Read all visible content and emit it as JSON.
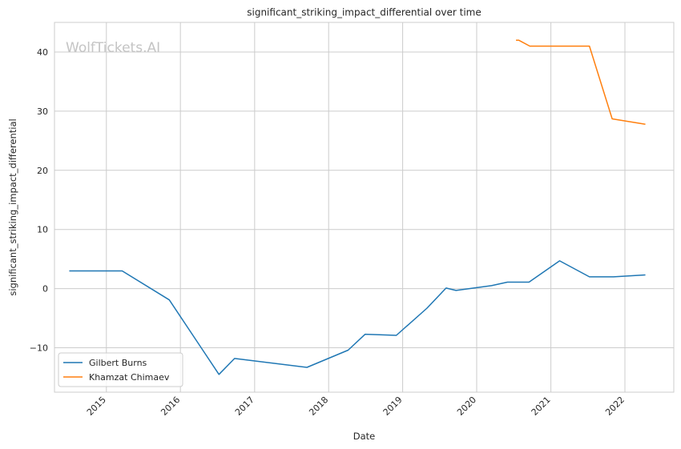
{
  "chart_data": {
    "type": "line",
    "title": "significant_striking_impact_differential over time",
    "xlabel": "Date",
    "ylabel": "significant_striking_impact_differential",
    "watermark": "WolfTickets.AI",
    "grid": true,
    "legend_position": "lower-left",
    "xlim": [
      "2014-04-20",
      "2022-08-30"
    ],
    "ylim": [
      -17.5,
      45
    ],
    "x_ticks": [
      "2015",
      "2016",
      "2017",
      "2018",
      "2019",
      "2020",
      "2021",
      "2022"
    ],
    "y_ticks": [
      -10,
      0,
      10,
      20,
      30,
      40
    ],
    "colors": {
      "grid": "#cccccc",
      "axes_edge": "#cccccc"
    },
    "series": [
      {
        "name": "Gilbert Burns",
        "color": "#1f77b4",
        "points": [
          {
            "x": "2014-07-05",
            "y": 3.0
          },
          {
            "x": "2015-03-20",
            "y": 3.0
          },
          {
            "x": "2015-11-07",
            "y": -1.9
          },
          {
            "x": "2016-07-09",
            "y": -14.5
          },
          {
            "x": "2016-09-24",
            "y": -11.8
          },
          {
            "x": "2017-09-16",
            "y": -13.3
          },
          {
            "x": "2018-04-07",
            "y": -10.4
          },
          {
            "x": "2018-06-30",
            "y": -7.7
          },
          {
            "x": "2018-12-01",
            "y": -7.9
          },
          {
            "x": "2019-05-01",
            "y": -3.3
          },
          {
            "x": "2019-08-03",
            "y": 0.1
          },
          {
            "x": "2019-09-21",
            "y": -0.3
          },
          {
            "x": "2020-03-14",
            "y": 0.5
          },
          {
            "x": "2020-06-01",
            "y": 1.1
          },
          {
            "x": "2020-09-15",
            "y": 1.1
          },
          {
            "x": "2021-02-13",
            "y": 4.7
          },
          {
            "x": "2021-07-10",
            "y": 2.0
          },
          {
            "x": "2021-11-06",
            "y": 2.0
          },
          {
            "x": "2022-04-09",
            "y": 2.3
          }
        ]
      },
      {
        "name": "Khamzat Chimaev",
        "color": "#ff7f0e",
        "points": [
          {
            "x": "2020-07-16",
            "y": 42.0
          },
          {
            "x": "2020-07-26",
            "y": 42.0
          },
          {
            "x": "2020-09-19",
            "y": 41.0
          },
          {
            "x": "2021-07-10",
            "y": 41.0
          },
          {
            "x": "2021-10-30",
            "y": 28.7
          },
          {
            "x": "2022-04-09",
            "y": 27.8
          }
        ]
      }
    ]
  }
}
